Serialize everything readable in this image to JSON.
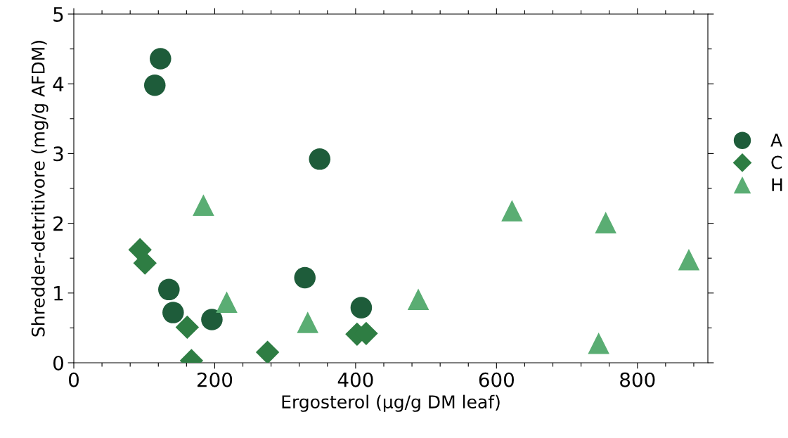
{
  "chart_data": {
    "type": "scatter",
    "xlabel": "Ergosterol (µg/g DM leaf)",
    "ylabel": "Shredder-detritivore (mg/g AFDM)",
    "xlim": [
      0,
      900
    ],
    "ylim": [
      0,
      5
    ],
    "xticks": [
      0,
      {
        "value": 40,
        "label": null
      },
      {
        "value": 80,
        "label": null
      },
      {
        "value": 120,
        "label": null
      },
      {
        "value": 160,
        "label": null
      },
      200,
      {
        "value": 240,
        "label": null
      },
      {
        "value": 280,
        "label": null
      },
      {
        "value": 320,
        "label": null
      },
      {
        "value": 360,
        "label": null
      },
      400,
      {
        "value": 440,
        "label": null
      },
      {
        "value": 480,
        "label": null
      },
      {
        "value": 520,
        "label": null
      },
      {
        "value": 560,
        "label": null
      },
      600,
      {
        "value": 640,
        "label": null
      },
      {
        "value": 680,
        "label": null
      },
      {
        "value": 720,
        "label": null
      },
      {
        "value": 760,
        "label": null
      },
      800,
      {
        "value": 840,
        "label": null
      },
      {
        "value": 880,
        "label": null
      }
    ],
    "yticks": [
      0,
      {
        "value": 0.5,
        "label": null
      },
      1,
      {
        "value": 1.5,
        "label": null
      },
      2,
      {
        "value": 2.5,
        "label": null
      },
      3,
      {
        "value": 3.5,
        "label": null
      },
      4,
      {
        "value": 4.5,
        "label": null
      },
      5
    ],
    "grid": false,
    "legend": "right",
    "series": [
      {
        "name": "A",
        "color": "#1e5c3a",
        "marker": "circle",
        "x": [
          123,
          115,
          349,
          135,
          141,
          196,
          328,
          408
        ],
        "values": [
          4.36,
          3.98,
          2.92,
          1.05,
          0.72,
          0.62,
          1.22,
          0.79
        ]
      },
      {
        "name": "C",
        "color": "#2e7d43",
        "marker": "diamond",
        "x": [
          94,
          101,
          161,
          167,
          275,
          402,
          415
        ],
        "values": [
          1.62,
          1.43,
          0.51,
          0.03,
          0.15,
          0.41,
          0.42
        ]
      },
      {
        "name": "H",
        "color": "#5aad73",
        "marker": "triangle",
        "x": [
          184,
          217,
          332,
          489,
          622,
          755,
          873,
          745
        ],
        "values": [
          2.26,
          0.87,
          0.58,
          0.91,
          2.18,
          2.01,
          1.48,
          0.28
        ]
      }
    ]
  }
}
